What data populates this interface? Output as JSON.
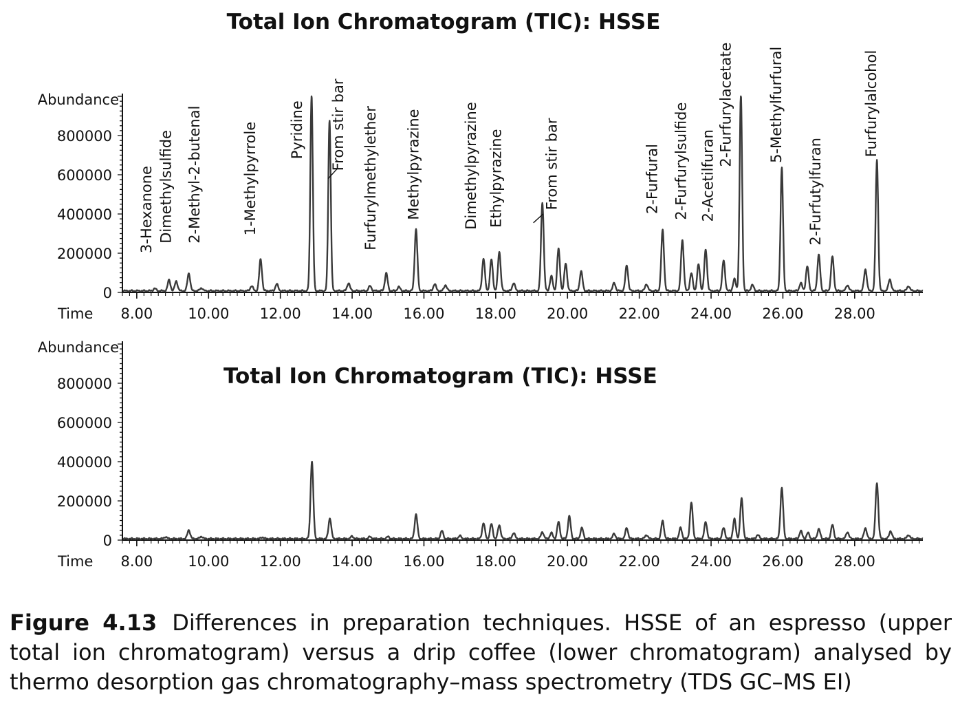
{
  "chart_data": [
    {
      "type": "line",
      "title": "Total Ion Chromatogram (TIC): HSSE",
      "xlabel": "Time",
      "ylabel": "Abundance",
      "xlim": [
        7.6,
        29.9
      ],
      "ylim": [
        0,
        1000000
      ],
      "x_tick_values": [
        8,
        10,
        12,
        14,
        16,
        18,
        20,
        22,
        24,
        26,
        28
      ],
      "x_tick_labels": [
        "8.00",
        "10.00",
        "12.00",
        "14.00",
        "16.00",
        "18.00",
        "20.00",
        "22.00",
        "24.00",
        "26.00",
        "28.00"
      ],
      "y_tick_values": [
        0,
        200000,
        400000,
        600000,
        800000
      ],
      "y_tick_labels": [
        "0",
        "200000",
        "400000",
        "600000",
        "800000"
      ],
      "baseline": 8000,
      "peaks": [
        {
          "t": 8.5,
          "h": 12000
        },
        {
          "t": 8.9,
          "h": 55000
        },
        {
          "t": 9.1,
          "h": 50000
        },
        {
          "t": 9.45,
          "h": 90000
        },
        {
          "t": 9.8,
          "h": 15000
        },
        {
          "t": 11.2,
          "h": 25000
        },
        {
          "t": 11.45,
          "h": 160000
        },
        {
          "t": 11.9,
          "h": 35000
        },
        {
          "t": 12.87,
          "h": 1000000
        },
        {
          "t": 13.37,
          "h": 870000
        },
        {
          "t": 13.9,
          "h": 40000
        },
        {
          "t": 14.5,
          "h": 25000
        },
        {
          "t": 14.95,
          "h": 90000
        },
        {
          "t": 15.3,
          "h": 20000
        },
        {
          "t": 15.78,
          "h": 315000
        },
        {
          "t": 16.3,
          "h": 35000
        },
        {
          "t": 16.6,
          "h": 30000
        },
        {
          "t": 17.66,
          "h": 165000
        },
        {
          "t": 17.88,
          "h": 160000
        },
        {
          "t": 18.1,
          "h": 200000
        },
        {
          "t": 18.5,
          "h": 40000
        },
        {
          "t": 19.3,
          "h": 450000
        },
        {
          "t": 19.55,
          "h": 75000
        },
        {
          "t": 19.75,
          "h": 215000
        },
        {
          "t": 19.95,
          "h": 140000
        },
        {
          "t": 20.38,
          "h": 100000
        },
        {
          "t": 21.3,
          "h": 40000
        },
        {
          "t": 21.65,
          "h": 130000
        },
        {
          "t": 22.2,
          "h": 35000
        },
        {
          "t": 22.65,
          "h": 310000
        },
        {
          "t": 23.2,
          "h": 260000
        },
        {
          "t": 23.45,
          "h": 90000
        },
        {
          "t": 23.65,
          "h": 135000
        },
        {
          "t": 23.85,
          "h": 210000
        },
        {
          "t": 24.35,
          "h": 155000
        },
        {
          "t": 24.65,
          "h": 60000
        },
        {
          "t": 24.83,
          "h": 1000000
        },
        {
          "t": 25.15,
          "h": 30000
        },
        {
          "t": 25.97,
          "h": 630000
        },
        {
          "t": 26.5,
          "h": 40000
        },
        {
          "t": 26.68,
          "h": 125000
        },
        {
          "t": 27.0,
          "h": 185000
        },
        {
          "t": 27.38,
          "h": 175000
        },
        {
          "t": 27.8,
          "h": 30000
        },
        {
          "t": 28.3,
          "h": 110000
        },
        {
          "t": 28.62,
          "h": 670000
        },
        {
          "t": 28.98,
          "h": 60000
        },
        {
          "t": 29.5,
          "h": 25000
        }
      ],
      "annotations": [
        {
          "label": "3-Hexanone",
          "t": 8.4,
          "y_base": 200000,
          "leader": false
        },
        {
          "label": "Dimethylsulfide",
          "t": 8.95,
          "y_base": 250000,
          "leader": false
        },
        {
          "label": "2-Methyl-2-butenal",
          "t": 9.75,
          "y_base": 250000,
          "leader": false
        },
        {
          "label": "1-Methylpyrrole",
          "t": 11.3,
          "y_base": 290000,
          "leader": false
        },
        {
          "label": "Pyridine",
          "t": 12.6,
          "y_base": 680000,
          "leader": false
        },
        {
          "label": "From stir bar",
          "t": 13.75,
          "y_base": 620000,
          "leader": true,
          "from_t": 13.33,
          "from_y": 580000,
          "to_t": 13.58,
          "to_y": 630000
        },
        {
          "label": "Furfurylmethylether",
          "t": 14.65,
          "y_base": 215000,
          "leader": false
        },
        {
          "label": "Methylpyrazine",
          "t": 15.85,
          "y_base": 370000,
          "leader": false
        },
        {
          "label": "Dimethylpyrazine",
          "t": 17.45,
          "y_base": 320000,
          "leader": false
        },
        {
          "label": "Ethylpyrazine",
          "t": 18.15,
          "y_base": 330000,
          "leader": false
        },
        {
          "label": "From stir bar",
          "t": 19.7,
          "y_base": 420000,
          "leader": true,
          "from_t": 19.05,
          "from_y": 355000,
          "to_t": 19.32,
          "to_y": 400000
        },
        {
          "label": "2-Furfural",
          "t": 22.5,
          "y_base": 400000,
          "leader": false
        },
        {
          "label": "2-Furfurylsulfide",
          "t": 23.3,
          "y_base": 370000,
          "leader": false
        },
        {
          "label": "2-Acetilfuran",
          "t": 24.05,
          "y_base": 360000,
          "leader": false
        },
        {
          "label": "2-Furfurylacetate",
          "t": 24.55,
          "y_base": 640000,
          "leader": false
        },
        {
          "label": "5-Methylfurfural",
          "t": 25.95,
          "y_base": 660000,
          "leader": false
        },
        {
          "label": "2-Furfutylfuran",
          "t": 27.05,
          "y_base": 240000,
          "leader": false
        },
        {
          "label": "Furfurylalcohol",
          "t": 28.6,
          "y_base": 690000,
          "leader": false
        }
      ]
    },
    {
      "type": "line",
      "title": "Total Ion Chromatogram (TIC): HSSE",
      "xlabel": "Time",
      "ylabel": "Abundance",
      "xlim": [
        7.6,
        29.9
      ],
      "ylim": [
        0,
        1000000
      ],
      "x_tick_values": [
        8,
        10,
        12,
        14,
        16,
        18,
        20,
        22,
        24,
        26,
        28
      ],
      "x_tick_labels": [
        "8.00",
        "10.00",
        "12.00",
        "14.00",
        "16.00",
        "18.00",
        "20.00",
        "22.00",
        "24.00",
        "26.00",
        "28.00"
      ],
      "y_tick_values": [
        0,
        200000,
        400000,
        600000,
        800000
      ],
      "y_tick_labels": [
        "0",
        "200000",
        "400000",
        "600000",
        "800000"
      ],
      "baseline": 7000,
      "peaks": [
        {
          "t": 8.8,
          "h": 10000
        },
        {
          "t": 9.45,
          "h": 45000
        },
        {
          "t": 9.8,
          "h": 12000
        },
        {
          "t": 11.5,
          "h": 8000
        },
        {
          "t": 12.88,
          "h": 395000
        },
        {
          "t": 13.38,
          "h": 105000
        },
        {
          "t": 14.0,
          "h": 12000
        },
        {
          "t": 14.5,
          "h": 10000
        },
        {
          "t": 15.0,
          "h": 10000
        },
        {
          "t": 15.78,
          "h": 125000
        },
        {
          "t": 16.5,
          "h": 40000
        },
        {
          "t": 17.0,
          "h": 15000
        },
        {
          "t": 17.66,
          "h": 80000
        },
        {
          "t": 17.88,
          "h": 75000
        },
        {
          "t": 18.1,
          "h": 70000
        },
        {
          "t": 18.5,
          "h": 30000
        },
        {
          "t": 19.3,
          "h": 35000
        },
        {
          "t": 19.55,
          "h": 30000
        },
        {
          "t": 19.75,
          "h": 85000
        },
        {
          "t": 20.05,
          "h": 115000
        },
        {
          "t": 20.4,
          "h": 55000
        },
        {
          "t": 21.3,
          "h": 25000
        },
        {
          "t": 21.65,
          "h": 55000
        },
        {
          "t": 22.2,
          "h": 20000
        },
        {
          "t": 22.65,
          "h": 90000
        },
        {
          "t": 23.15,
          "h": 55000
        },
        {
          "t": 23.45,
          "h": 185000
        },
        {
          "t": 23.85,
          "h": 85000
        },
        {
          "t": 24.35,
          "h": 55000
        },
        {
          "t": 24.65,
          "h": 100000
        },
        {
          "t": 24.85,
          "h": 205000
        },
        {
          "t": 25.3,
          "h": 20000
        },
        {
          "t": 25.97,
          "h": 260000
        },
        {
          "t": 26.5,
          "h": 40000
        },
        {
          "t": 26.7,
          "h": 30000
        },
        {
          "t": 27.0,
          "h": 50000
        },
        {
          "t": 27.38,
          "h": 70000
        },
        {
          "t": 27.8,
          "h": 35000
        },
        {
          "t": 28.3,
          "h": 55000
        },
        {
          "t": 28.62,
          "h": 285000
        },
        {
          "t": 29.0,
          "h": 40000
        },
        {
          "t": 29.5,
          "h": 20000
        }
      ],
      "annotations": []
    }
  ],
  "caption": {
    "figure_label": "Figure 4.13",
    "text": "Differences in preparation techniques. HSSE of an espresso (upper total ion chromatogram) versus a drip coffee (lower chromatogram) analysed by thermo desorption gas chromatography–mass spectrometry (TDS GC–MS EI)"
  }
}
